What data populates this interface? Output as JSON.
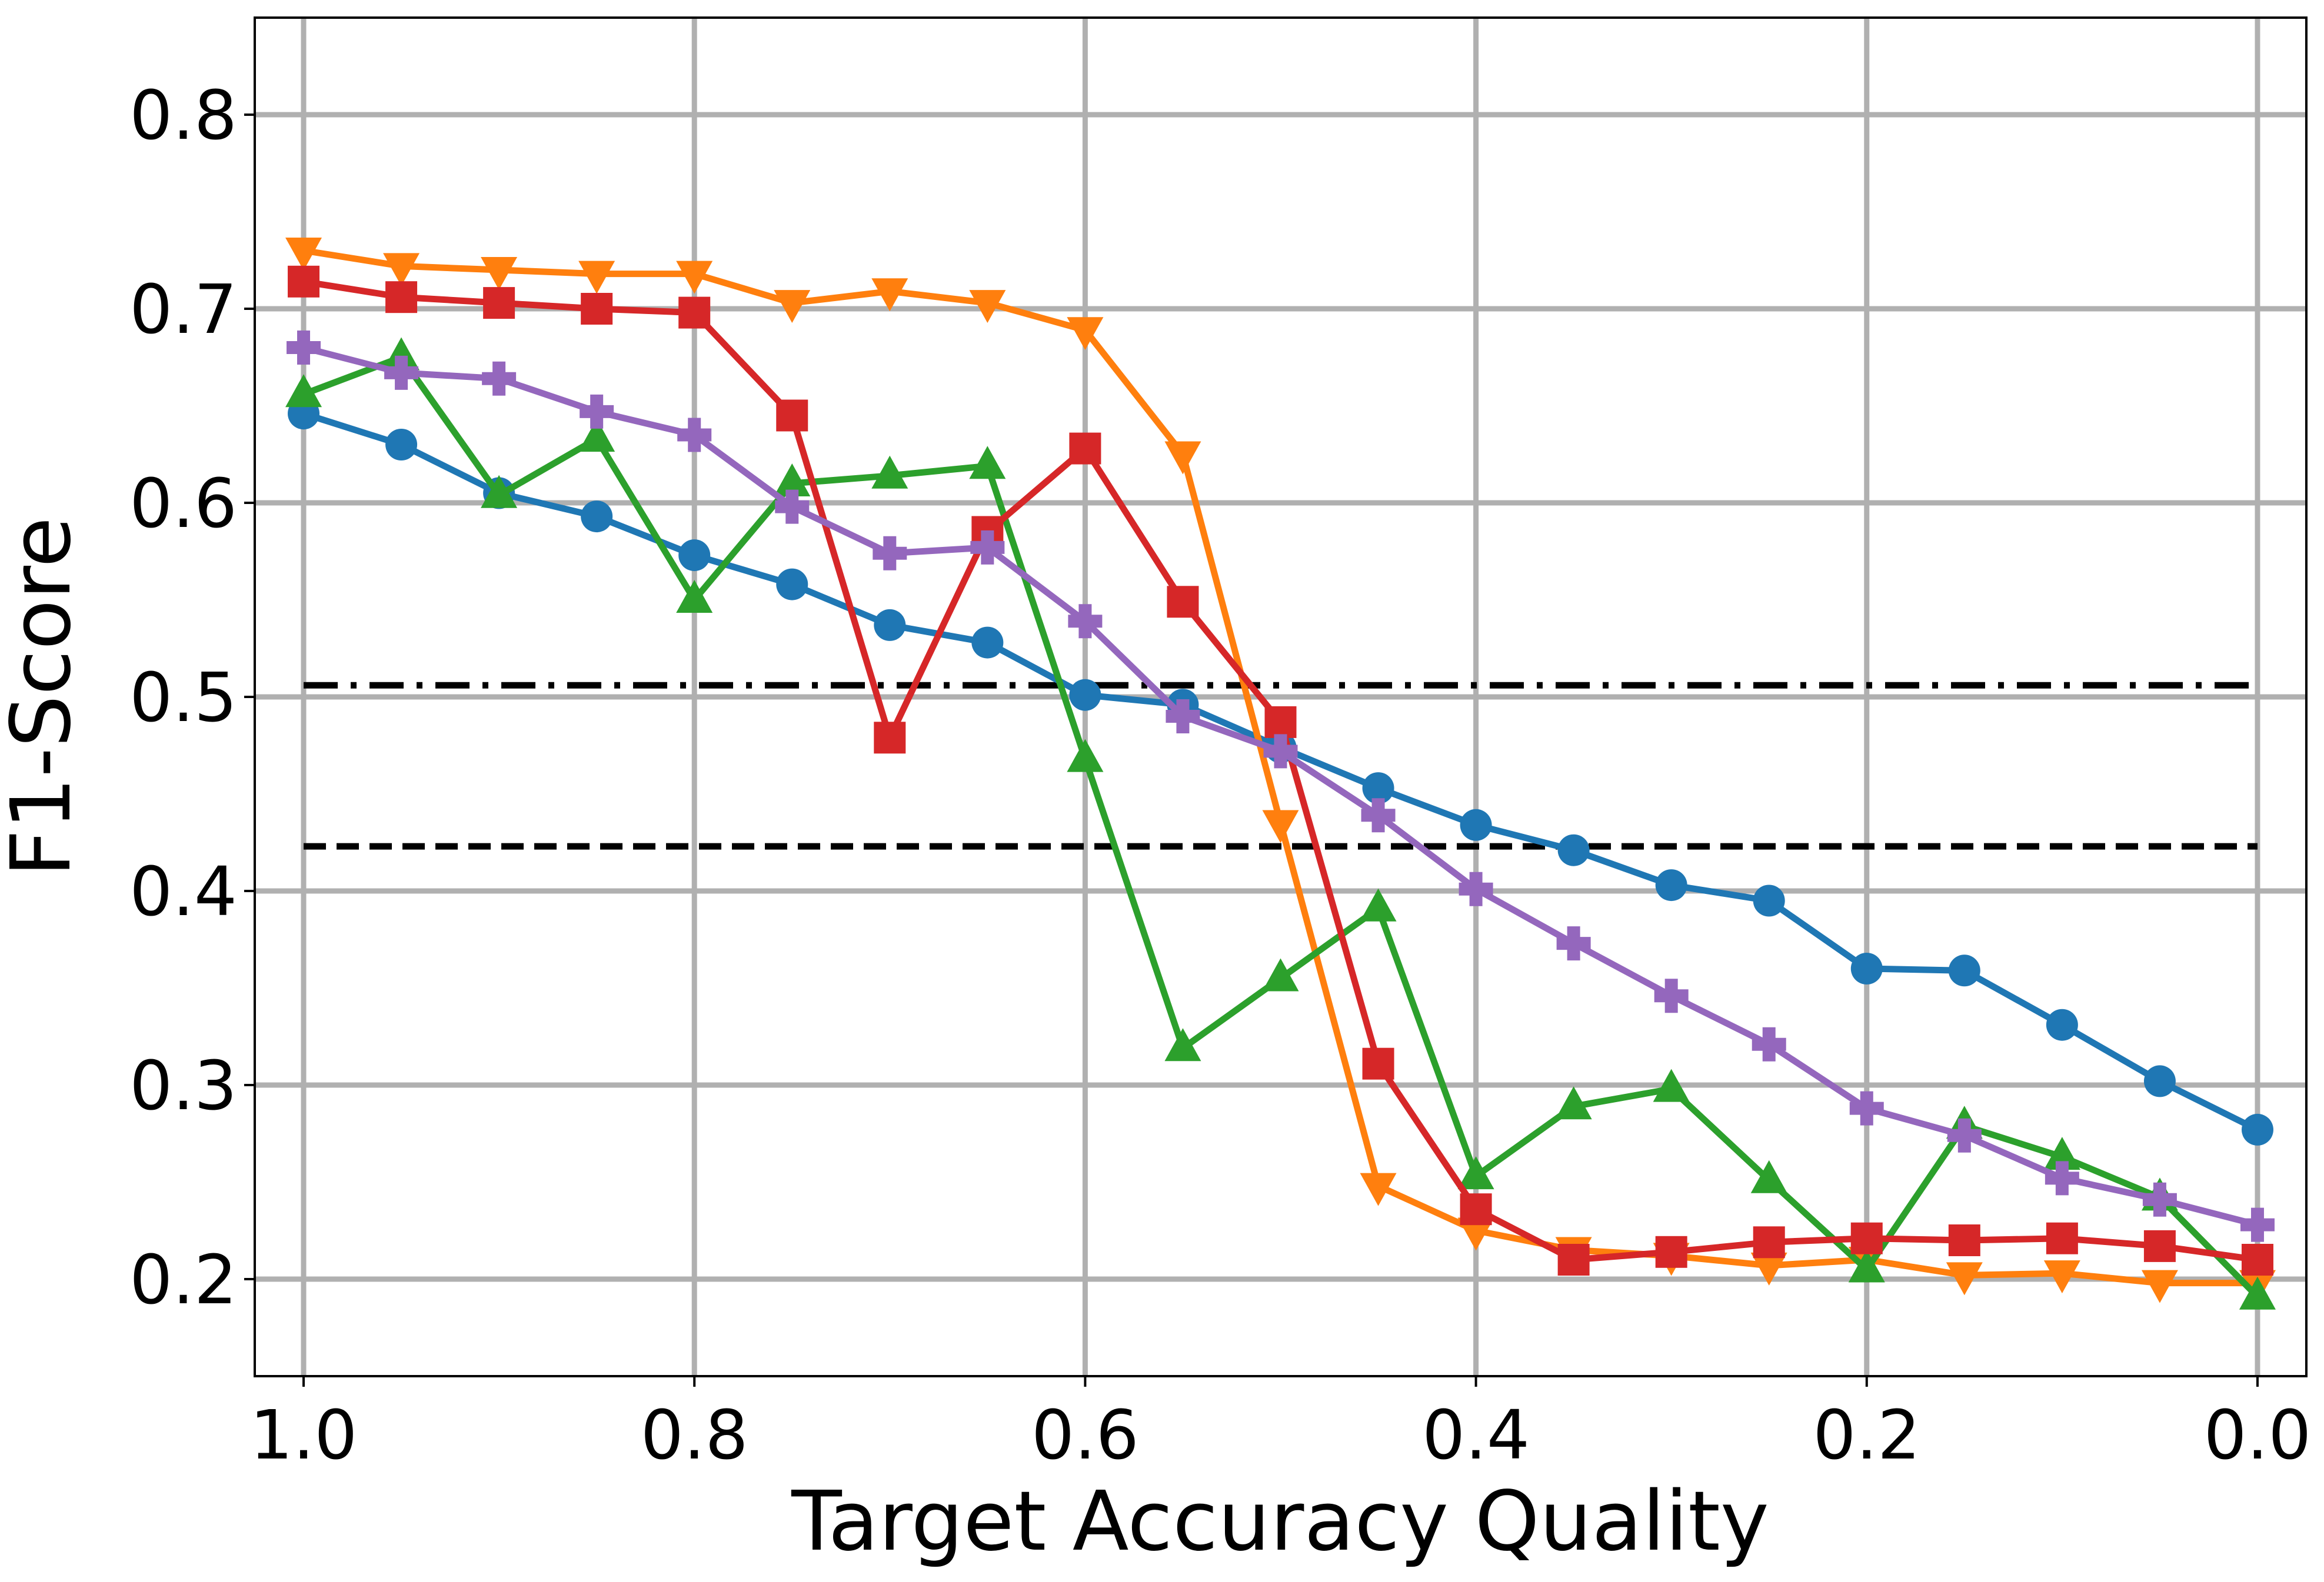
{
  "chart_data": {
    "type": "line",
    "title": "",
    "xlabel": "Target Accuracy Quality",
    "ylabel": "F1-Score",
    "xlim": [
      1.025,
      -0.025
    ],
    "ylim": [
      0.15,
      0.85
    ],
    "x_reversed": true,
    "grid": true,
    "legend": "none",
    "xticks": [
      1.0,
      0.8,
      0.6,
      0.4,
      0.2,
      0.0
    ],
    "xtick_labels": [
      "1.0",
      "0.8",
      "0.6",
      "0.4",
      "0.2",
      "0.0"
    ],
    "yticks": [
      0.2,
      0.3,
      0.4,
      0.5,
      0.6,
      0.7,
      0.8
    ],
    "ytick_labels": [
      "0.2",
      "0.3",
      "0.4",
      "0.5",
      "0.6",
      "0.7",
      "0.8"
    ],
    "x": [
      1.0,
      0.95,
      0.9,
      0.85,
      0.8,
      0.75,
      0.7,
      0.65,
      0.6,
      0.55,
      0.5,
      0.45,
      0.4,
      0.35,
      0.3,
      0.25,
      0.2,
      0.15,
      0.1,
      0.05,
      0.0
    ],
    "series": [
      {
        "color": "#1f77b4",
        "marker": "circle",
        "values": [
          0.646,
          0.63,
          0.605,
          0.593,
          0.573,
          0.558,
          0.537,
          0.528,
          0.501,
          0.496,
          0.474,
          0.453,
          0.434,
          0.421,
          0.403,
          0.395,
          0.36,
          0.359,
          0.331,
          0.302,
          0.277
        ]
      },
      {
        "color": "#ff7f0e",
        "marker": "triangle-down",
        "values": [
          0.73,
          0.722,
          0.72,
          0.718,
          0.718,
          0.703,
          0.709,
          0.703,
          0.689,
          0.625,
          0.435,
          0.248,
          0.225,
          0.215,
          0.212,
          0.207,
          0.21,
          0.202,
          0.203,
          0.198,
          0.198
        ]
      },
      {
        "color": "#2ca02c",
        "marker": "triangle-up",
        "values": [
          0.656,
          0.675,
          0.604,
          0.633,
          0.55,
          0.61,
          0.614,
          0.619,
          0.468,
          0.319,
          0.355,
          0.391,
          0.253,
          0.289,
          0.298,
          0.251,
          0.205,
          0.279,
          0.263,
          0.242,
          0.191
        ]
      },
      {
        "color": "#d62728",
        "marker": "square",
        "values": [
          0.714,
          0.706,
          0.703,
          0.7,
          0.698,
          0.645,
          0.479,
          0.585,
          0.628,
          0.549,
          0.487,
          0.311,
          0.236,
          0.21,
          0.214,
          0.219,
          0.221,
          0.22,
          0.221,
          0.217,
          0.21
        ]
      },
      {
        "color": "#9467bd",
        "marker": "plus",
        "values": [
          0.68,
          0.667,
          0.664,
          0.647,
          0.635,
          0.598,
          0.574,
          0.577,
          0.539,
          0.49,
          0.472,
          0.439,
          0.401,
          0.373,
          0.346,
          0.321,
          0.288,
          0.274,
          0.252,
          0.241,
          0.228
        ]
      }
    ],
    "reference_lines": [
      {
        "y": 0.506,
        "style": "dash-dot",
        "color": "#000000"
      },
      {
        "y": 0.423,
        "style": "dashed",
        "color": "#000000"
      }
    ]
  }
}
